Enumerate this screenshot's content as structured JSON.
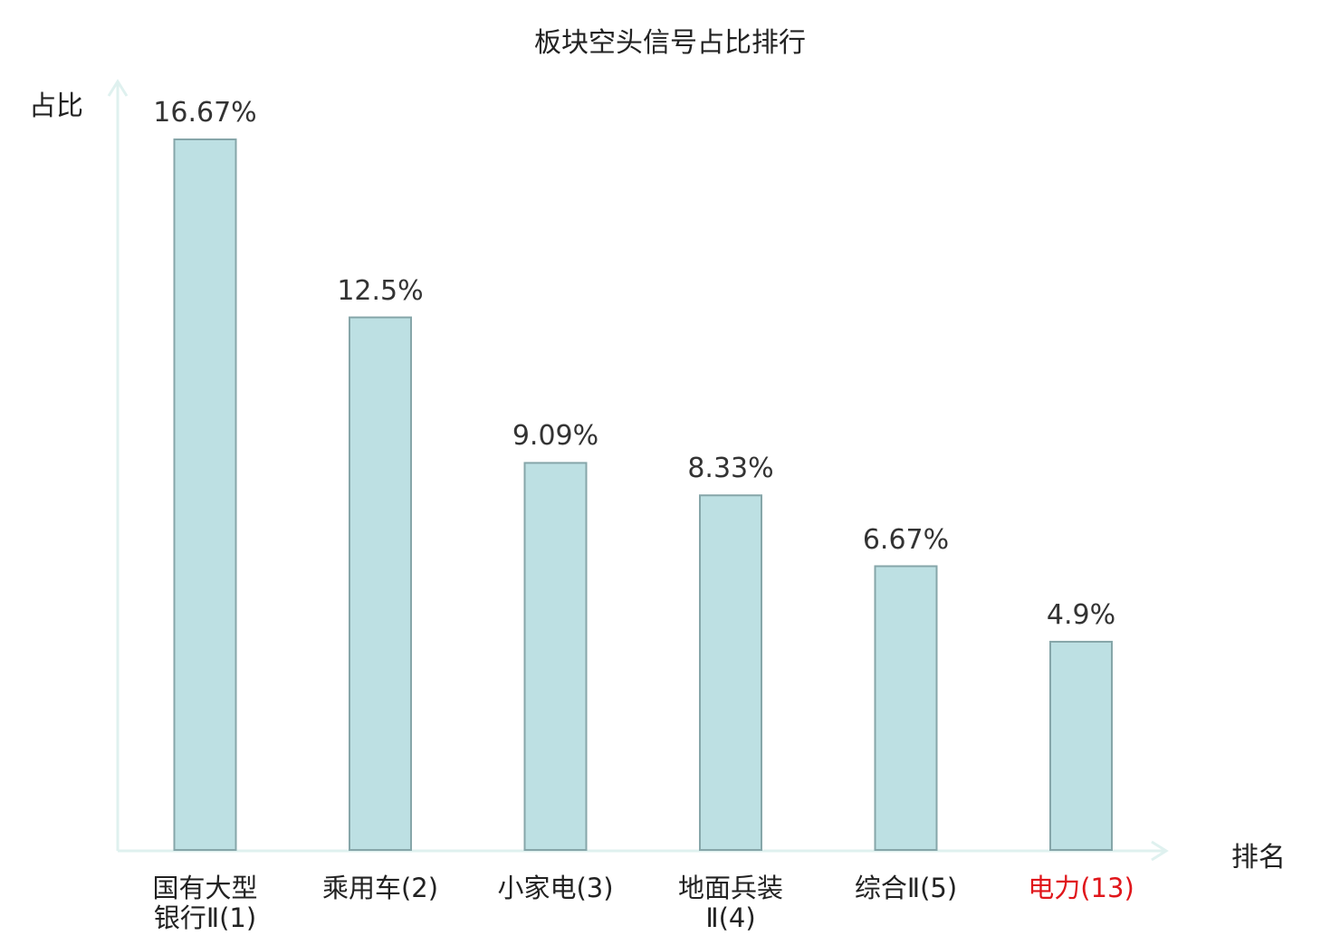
{
  "chart_data": {
    "type": "bar",
    "title": "板块空头信号占比排行",
    "ylabel": "占比",
    "xlabel": "排名",
    "categories": [
      "国有大型银行Ⅱ(1)",
      "乘用车(2)",
      "小家电(3)",
      "地面兵装Ⅱ(4)",
      "综合Ⅱ(5)",
      "电力(13)"
    ],
    "category_lines": [
      [
        "国有大型",
        "银行Ⅱ(1)"
      ],
      [
        "乘用车(2)"
      ],
      [
        "小家电(3)"
      ],
      [
        "地面兵装",
        "Ⅱ(4)"
      ],
      [
        "综合Ⅱ(5)"
      ],
      [
        "电力(13)"
      ]
    ],
    "values": [
      16.67,
      12.5,
      9.09,
      8.33,
      6.67,
      4.9
    ],
    "value_labels": [
      "16.67%",
      "12.5%",
      "9.09%",
      "8.33%",
      "6.67%",
      "4.9%"
    ],
    "highlight_index": 5,
    "grid": false,
    "colors": {
      "bar_fill": "#bde0e3",
      "bar_stroke": "#86a6a9",
      "axis": "#dff1ef",
      "highlight_text": "#e0161b"
    }
  }
}
